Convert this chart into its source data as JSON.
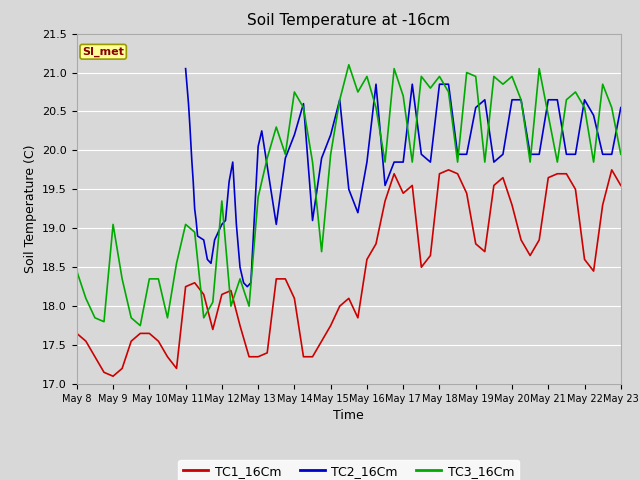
{
  "title": "Soil Temperature at -16cm",
  "xlabel": "Time",
  "ylabel": "Soil Temperature (C)",
  "ylim": [
    17.0,
    21.5
  ],
  "xlim": [
    0,
    15.0
  ],
  "plot_bg_color": "#d8d8d8",
  "fig_bg_color": "#d8d8d8",
  "legend_bg_color": "#ffffff",
  "annotation_text": "SI_met",
  "annotation_bg": "#ffff99",
  "annotation_border": "#999900",
  "xtick_labels": [
    "May 8",
    "May 9",
    "May 10",
    "May 11",
    "May 12",
    "May 13",
    "May 14",
    "May 15",
    "May 16",
    "May 17",
    "May 18",
    "May 19",
    "May 20",
    "May 21",
    "May 22",
    "May 23"
  ],
  "ytick_values": [
    17.0,
    17.5,
    18.0,
    18.5,
    19.0,
    19.5,
    20.0,
    20.5,
    21.0,
    21.5
  ],
  "legend_labels": [
    "TC1_16Cm",
    "TC2_16Cm",
    "TC3_16Cm"
  ],
  "line_colors": [
    "#cc0000",
    "#0000cc",
    "#00aa00"
  ],
  "tc1_x": [
    0.0,
    0.25,
    0.5,
    0.75,
    1.0,
    1.25,
    1.5,
    1.75,
    2.0,
    2.25,
    2.5,
    2.75,
    3.0,
    3.25,
    3.5,
    3.75,
    4.0,
    4.25,
    4.5,
    4.75,
    5.0,
    5.25,
    5.5,
    5.75,
    6.0,
    6.25,
    6.5,
    6.75,
    7.0,
    7.25,
    7.5,
    7.75,
    8.0,
    8.25,
    8.5,
    8.75,
    9.0,
    9.25,
    9.5,
    9.75,
    10.0,
    10.25,
    10.5,
    10.75,
    11.0,
    11.25,
    11.5,
    11.75,
    12.0,
    12.25,
    12.5,
    12.75,
    13.0,
    13.25,
    13.5,
    13.75,
    14.0,
    14.25,
    14.5,
    14.75,
    15.0
  ],
  "tc1_y": [
    17.65,
    17.55,
    17.35,
    17.15,
    17.1,
    17.2,
    17.55,
    17.65,
    17.65,
    17.55,
    17.35,
    17.2,
    18.25,
    18.3,
    18.15,
    17.7,
    18.15,
    18.2,
    17.75,
    17.35,
    17.35,
    17.4,
    18.35,
    18.35,
    18.1,
    17.35,
    17.35,
    17.55,
    17.75,
    18.0,
    18.1,
    17.85,
    18.6,
    18.8,
    19.35,
    19.7,
    19.45,
    19.55,
    18.5,
    18.65,
    19.7,
    19.75,
    19.7,
    19.45,
    18.8,
    18.7,
    19.55,
    19.65,
    19.3,
    18.85,
    18.65,
    18.85,
    19.65,
    19.7,
    19.7,
    19.5,
    18.6,
    18.45,
    19.3,
    19.75,
    19.55
  ],
  "tc2_x": [
    3.0,
    3.08,
    3.12,
    3.17,
    3.21,
    3.25,
    3.29,
    3.33,
    3.5,
    3.6,
    3.7,
    3.8,
    3.9,
    4.0,
    4.1,
    4.2,
    4.3,
    4.4,
    4.5,
    4.6,
    4.7,
    4.8,
    5.0,
    5.1,
    5.5,
    5.75,
    6.0,
    6.25,
    6.5,
    6.75,
    7.0,
    7.25,
    7.5,
    7.75,
    8.0,
    8.25,
    8.5,
    8.75,
    9.0,
    9.25,
    9.5,
    9.75,
    10.0,
    10.25,
    10.5,
    10.75,
    11.0,
    11.25,
    11.5,
    11.75,
    12.0,
    12.25,
    12.5,
    12.75,
    13.0,
    13.25,
    13.5,
    13.75,
    14.0,
    14.25,
    14.5,
    14.75,
    15.0
  ],
  "tc2_y": [
    21.05,
    20.6,
    20.3,
    19.88,
    19.6,
    19.25,
    19.1,
    18.9,
    18.85,
    18.6,
    18.55,
    18.85,
    18.95,
    19.05,
    19.1,
    19.6,
    19.85,
    19.05,
    18.5,
    18.3,
    18.25,
    18.3,
    20.05,
    20.25,
    19.05,
    19.9,
    20.2,
    20.6,
    19.1,
    19.9,
    20.2,
    20.65,
    19.5,
    19.2,
    19.85,
    20.85,
    19.55,
    19.85,
    19.85,
    20.85,
    19.95,
    19.85,
    20.85,
    20.85,
    19.95,
    19.95,
    20.55,
    20.65,
    19.85,
    19.95,
    20.65,
    20.65,
    19.95,
    19.95,
    20.65,
    20.65,
    19.95,
    19.95,
    20.65,
    20.45,
    19.95,
    19.95,
    20.55
  ],
  "tc3_x": [
    0.0,
    0.25,
    0.5,
    0.75,
    1.0,
    1.25,
    1.5,
    1.75,
    2.0,
    2.25,
    2.5,
    2.75,
    3.0,
    3.25,
    3.5,
    3.75,
    4.0,
    4.25,
    4.5,
    4.75,
    5.0,
    5.25,
    5.5,
    5.75,
    6.0,
    6.25,
    6.5,
    6.75,
    7.0,
    7.25,
    7.5,
    7.75,
    8.0,
    8.25,
    8.5,
    8.75,
    9.0,
    9.25,
    9.5,
    9.75,
    10.0,
    10.25,
    10.5,
    10.75,
    11.0,
    11.25,
    11.5,
    11.75,
    12.0,
    12.25,
    12.5,
    12.75,
    13.0,
    13.25,
    13.5,
    13.75,
    14.0,
    14.25,
    14.5,
    14.75,
    15.0
  ],
  "tc3_y": [
    18.45,
    18.1,
    17.85,
    17.8,
    19.05,
    18.35,
    17.85,
    17.75,
    18.35,
    18.35,
    17.85,
    18.55,
    19.05,
    18.95,
    17.85,
    18.05,
    19.35,
    18.0,
    18.35,
    18.0,
    19.4,
    19.9,
    20.3,
    19.95,
    20.75,
    20.55,
    19.85,
    18.7,
    19.95,
    20.65,
    21.1,
    20.75,
    20.95,
    20.55,
    19.85,
    21.05,
    20.7,
    19.85,
    20.95,
    20.8,
    20.95,
    20.75,
    19.85,
    21.0,
    20.95,
    19.85,
    20.95,
    20.85,
    20.95,
    20.65,
    19.85,
    21.05,
    20.45,
    19.85,
    20.65,
    20.75,
    20.55,
    19.85,
    20.85,
    20.55,
    19.95
  ]
}
